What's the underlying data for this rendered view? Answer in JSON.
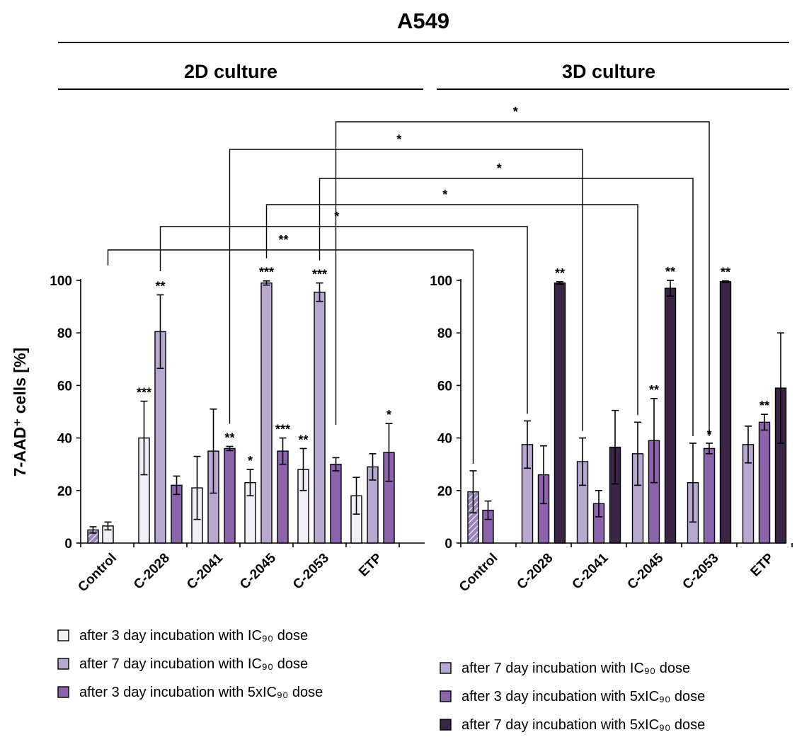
{
  "figure": {
    "title": "A549",
    "panels": [
      "2D culture",
      "3D culture"
    ]
  },
  "colors": {
    "ic90_3d": "#f1eef6",
    "ic90_7d": "#b7a8cf",
    "x5_3d": "#8c63ad",
    "x5_7d": "#3a2545",
    "control_3d_fill": "#9a86ba"
  },
  "chart_data": [
    {
      "type": "bar",
      "panel": "2D culture",
      "ylabel": "7-AAD⁺ cells [%]",
      "ylim": [
        0,
        100
      ],
      "yticks": [
        "0",
        "20",
        "40",
        "60",
        "80",
        "100"
      ],
      "categories": [
        "Control",
        "C-2028",
        "C-2041",
        "C-2045",
        "C-2053",
        "ETP"
      ],
      "series": [
        {
          "name": "after 3 day incubation with IC₉₀ dose",
          "values": [
            null,
            40,
            21,
            23,
            28,
            18
          ],
          "errors": [
            null,
            14,
            12,
            5,
            8,
            7
          ]
        },
        {
          "name": "after 7 day incubation with IC₉₀ dose",
          "values": [
            null,
            80.5,
            35,
            99,
            95.5,
            29
          ],
          "errors": [
            null,
            14,
            16,
            0.8,
            3.5,
            5
          ]
        },
        {
          "name": "after 3 day incubation with 5xIC₉₀ dose",
          "values": [
            null,
            22,
            36,
            35,
            30,
            34.5
          ],
          "errors": [
            null,
            3.5,
            0.8,
            5,
            2.5,
            11
          ]
        }
      ],
      "control_bars": [
        {
          "value": 5,
          "error": 1.2
        },
        {
          "value": 6.5,
          "error": 1.5
        }
      ],
      "significance": [
        {
          "category": "C-2028",
          "series": 0,
          "label": "***"
        },
        {
          "category": "C-2028",
          "series": 1,
          "label": "**"
        },
        {
          "category": "C-2041",
          "series": 2,
          "label": "**"
        },
        {
          "category": "C-2045",
          "series": 0,
          "label": "*"
        },
        {
          "category": "C-2045",
          "series": 1,
          "label": "***"
        },
        {
          "category": "C-2045",
          "series": 2,
          "label": "***"
        },
        {
          "category": "C-2053",
          "series": 0,
          "label": "**"
        },
        {
          "category": "C-2053",
          "series": 1,
          "label": "***"
        },
        {
          "category": "ETP",
          "series": 2,
          "label": "*"
        }
      ],
      "legend": [
        "after 3 day incubation with IC₉₀ dose",
        "after 7 day incubation with IC₉₀ dose",
        "after 3 day incubation with 5xIC₉₀ dose"
      ]
    },
    {
      "type": "bar",
      "panel": "3D culture",
      "ylim": [
        0,
        100
      ],
      "yticks": [
        "0",
        "20",
        "40",
        "60",
        "80",
        "100"
      ],
      "categories": [
        "Control",
        "C-2028",
        "C-2041",
        "C-2045",
        "C-2053",
        "ETP"
      ],
      "series": [
        {
          "name": "after 7 day incubation with IC₉₀ dose",
          "values": [
            null,
            37.5,
            31,
            34,
            23,
            37.5
          ],
          "errors": [
            null,
            9,
            9,
            12,
            15,
            7
          ]
        },
        {
          "name": "after 3 day incubation with 5xIC₉₀ dose",
          "values": [
            null,
            26,
            15,
            39,
            36,
            46
          ],
          "errors": [
            null,
            11,
            5,
            16,
            2,
            3
          ]
        },
        {
          "name": "after 7 day incubation with 5xIC₉₀ dose",
          "values": [
            null,
            99,
            36.5,
            97,
            99.5,
            59
          ],
          "errors": [
            null,
            0.5,
            14,
            3,
            0.3,
            21
          ]
        }
      ],
      "control_bars": [
        {
          "value": 19.5,
          "error": 8
        },
        {
          "value": 12.5,
          "error": 3.5
        }
      ],
      "significance": [
        {
          "category": "C-2028",
          "series": 2,
          "label": "**"
        },
        {
          "category": "C-2045",
          "series": 1,
          "label": "**"
        },
        {
          "category": "C-2045",
          "series": 2,
          "label": "**"
        },
        {
          "category": "C-2053",
          "series": 1,
          "label": "*"
        },
        {
          "category": "C-2053",
          "series": 2,
          "label": "**"
        },
        {
          "category": "ETP",
          "series": 1,
          "label": "**"
        }
      ],
      "legend": [
        "after 7 day incubation with IC₉₀ dose",
        "after 3 day incubation with 5xIC₉₀ dose",
        "after 7 day incubation with 5xIC₉₀ dose"
      ]
    }
  ],
  "comparisons": [
    {
      "label": "**",
      "from": {
        "panel": 0,
        "category": "Control",
        "bar": 1
      },
      "to": {
        "panel": 1,
        "category": "Control",
        "bar": 0
      }
    },
    {
      "label": "*",
      "from": {
        "panel": 0,
        "category": "C-2028",
        "bar": 1
      },
      "to": {
        "panel": 1,
        "category": "C-2028",
        "bar": 0
      }
    },
    {
      "label": "*",
      "from": {
        "panel": 0,
        "category": "C-2045",
        "bar": 1
      },
      "to": {
        "panel": 1,
        "category": "C-2045",
        "bar": 0
      }
    },
    {
      "label": "*",
      "from": {
        "panel": 0,
        "category": "C-2053",
        "bar": 1
      },
      "to": {
        "panel": 1,
        "category": "C-2053",
        "bar": 0
      }
    },
    {
      "label": "*",
      "from": {
        "panel": 0,
        "category": "C-2041",
        "bar": 2
      },
      "to": {
        "panel": 1,
        "category": "C-2041",
        "bar": 0
      }
    },
    {
      "label": "*",
      "from": {
        "panel": 0,
        "category": "C-2053",
        "bar": 2
      },
      "to": {
        "panel": 1,
        "category": "C-2053",
        "bar": 1
      }
    }
  ]
}
